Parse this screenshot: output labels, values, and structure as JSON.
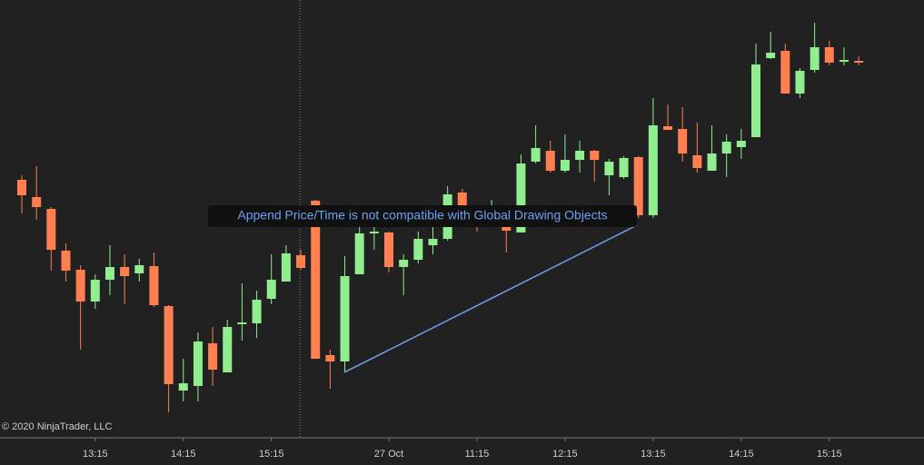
{
  "chart_data": {
    "type": "candlestick",
    "annotation": "Append Price/Time is not compatible with Global Drawing Objects",
    "copyright": "© 2020 NinjaTrader, LLC",
    "up_color": "#90ee90",
    "down_color": "#ff7f50",
    "categories": [
      null,
      null,
      null,
      null,
      null,
      "13:15",
      null,
      null,
      null,
      null,
      null,
      "14:15",
      null,
      null,
      null,
      null,
      null,
      "15:15",
      null,
      null,
      null,
      null,
      null,
      null,
      null,
      "27 Oct",
      null,
      null,
      null,
      null,
      null,
      "11:15",
      null,
      null,
      null,
      null,
      null,
      "12:15",
      null,
      null,
      null,
      null,
      null,
      "13:15",
      null,
      null,
      null,
      null,
      null,
      "14:15",
      null,
      null,
      null,
      null,
      null,
      "15:15",
      null,
      null
    ],
    "open": [
      284,
      265,
      252,
      206,
      185,
      150,
      174,
      188,
      181,
      189,
      145,
      52,
      57,
      104,
      72,
      125,
      126,
      153,
      172,
      201,
      261,
      91,
      84,
      180,
      225,
      226,
      188,
      196,
      212,
      219,
      270,
      242,
      234,
      236,
      226,
      304,
      316,
      294,
      306,
      316,
      289,
      287,
      309,
      245,
      343,
      340,
      311,
      294,
      313,
      320,
      331,
      418,
      426,
      379,
      405,
      430,
      414,
      415
    ],
    "high": [
      289,
      299,
      254,
      214,
      190,
      180,
      212,
      202,
      197,
      204,
      146,
      87,
      116,
      122,
      130,
      170,
      162,
      202,
      212,
      207,
      262,
      97,
      200,
      234,
      232,
      227,
      202,
      227,
      232,
      277,
      274,
      252,
      262,
      247,
      312,
      344,
      327,
      334,
      327,
      317,
      307,
      310,
      310,
      374,
      367,
      364,
      347,
      344,
      334,
      340,
      434,
      447,
      434,
      407,
      457,
      437,
      430,
      420
    ],
    "low": [
      247,
      240,
      184,
      172,
      97,
      142,
      157,
      147,
      172,
      144,
      28,
      40,
      40,
      57,
      72,
      107,
      110,
      147,
      172,
      185,
      87,
      54,
      72,
      180,
      207,
      182,
      157,
      192,
      202,
      217,
      237,
      227,
      232,
      204,
      226,
      302,
      292,
      292,
      292,
      282,
      267,
      285,
      242,
      242,
      339,
      304,
      292,
      294,
      287,
      307,
      331,
      417,
      379,
      374,
      402,
      410,
      410,
      410
    ],
    "close": [
      267,
      254,
      207,
      184,
      150,
      174,
      188,
      178,
      190,
      146,
      59,
      60,
      106,
      75,
      122,
      127,
      152,
      174,
      203,
      187,
      87,
      84,
      178,
      225,
      227,
      188,
      196,
      219,
      219,
      268,
      252,
      234,
      244,
      228,
      302,
      319,
      294,
      306,
      316,
      306,
      304,
      308,
      245,
      344,
      339,
      313,
      297,
      313,
      326,
      327,
      411,
      424,
      379,
      404,
      430,
      413,
      416,
      413
    ],
    "ylim": [
      0,
      482
    ]
  }
}
